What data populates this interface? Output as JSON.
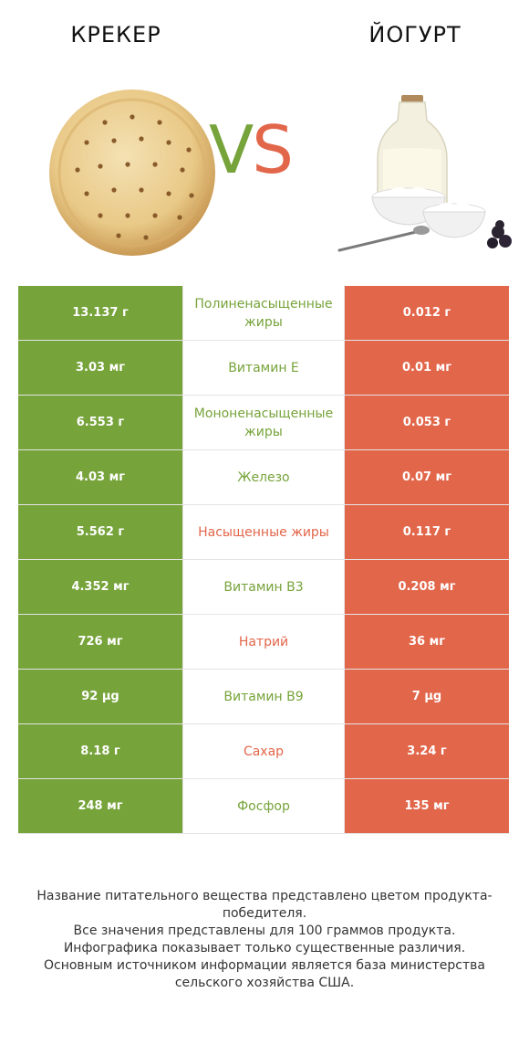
{
  "header": {
    "left_name": "КРЕКЕР",
    "right_name": "ЙОГУРТ",
    "vs_v": "V",
    "vs_s": "S"
  },
  "colors": {
    "winner_left": "#76a33a",
    "winner_right": "#e2664a"
  },
  "rows": [
    {
      "left": "13.137 г",
      "name": "Полиненасыщенные жиры",
      "right": "0.012 г",
      "winner": "left"
    },
    {
      "left": "3.03 мг",
      "name": "Витамин E",
      "right": "0.01 мг",
      "winner": "left"
    },
    {
      "left": "6.553 г",
      "name": "Мононенасыщенные жиры",
      "right": "0.053 г",
      "winner": "left"
    },
    {
      "left": "4.03 мг",
      "name": "Железо",
      "right": "0.07 мг",
      "winner": "left"
    },
    {
      "left": "5.562 г",
      "name": "Насыщенные жиры",
      "right": "0.117 г",
      "winner": "right"
    },
    {
      "left": "4.352 мг",
      "name": "Витамин B3",
      "right": "0.208 мг",
      "winner": "left"
    },
    {
      "left": "726 мг",
      "name": "Натрий",
      "right": "36 мг",
      "winner": "right"
    },
    {
      "left": "92 µg",
      "name": "Витамин B9",
      "right": "7 µg",
      "winner": "left"
    },
    {
      "left": "8.18 г",
      "name": "Сахар",
      "right": "3.24 г",
      "winner": "right"
    },
    {
      "left": "248 мг",
      "name": "Фосфор",
      "right": "135 мг",
      "winner": "left"
    }
  ],
  "footer": {
    "line1": "Название питательного вещества представлено цветом продукта-победителя.",
    "line2": "Все значения представлены для 100 граммов продукта.",
    "line3": "Инфографика показывает только существенные различия.",
    "line4": "Основным источником информации является база министерства сельского хозяйства США."
  }
}
